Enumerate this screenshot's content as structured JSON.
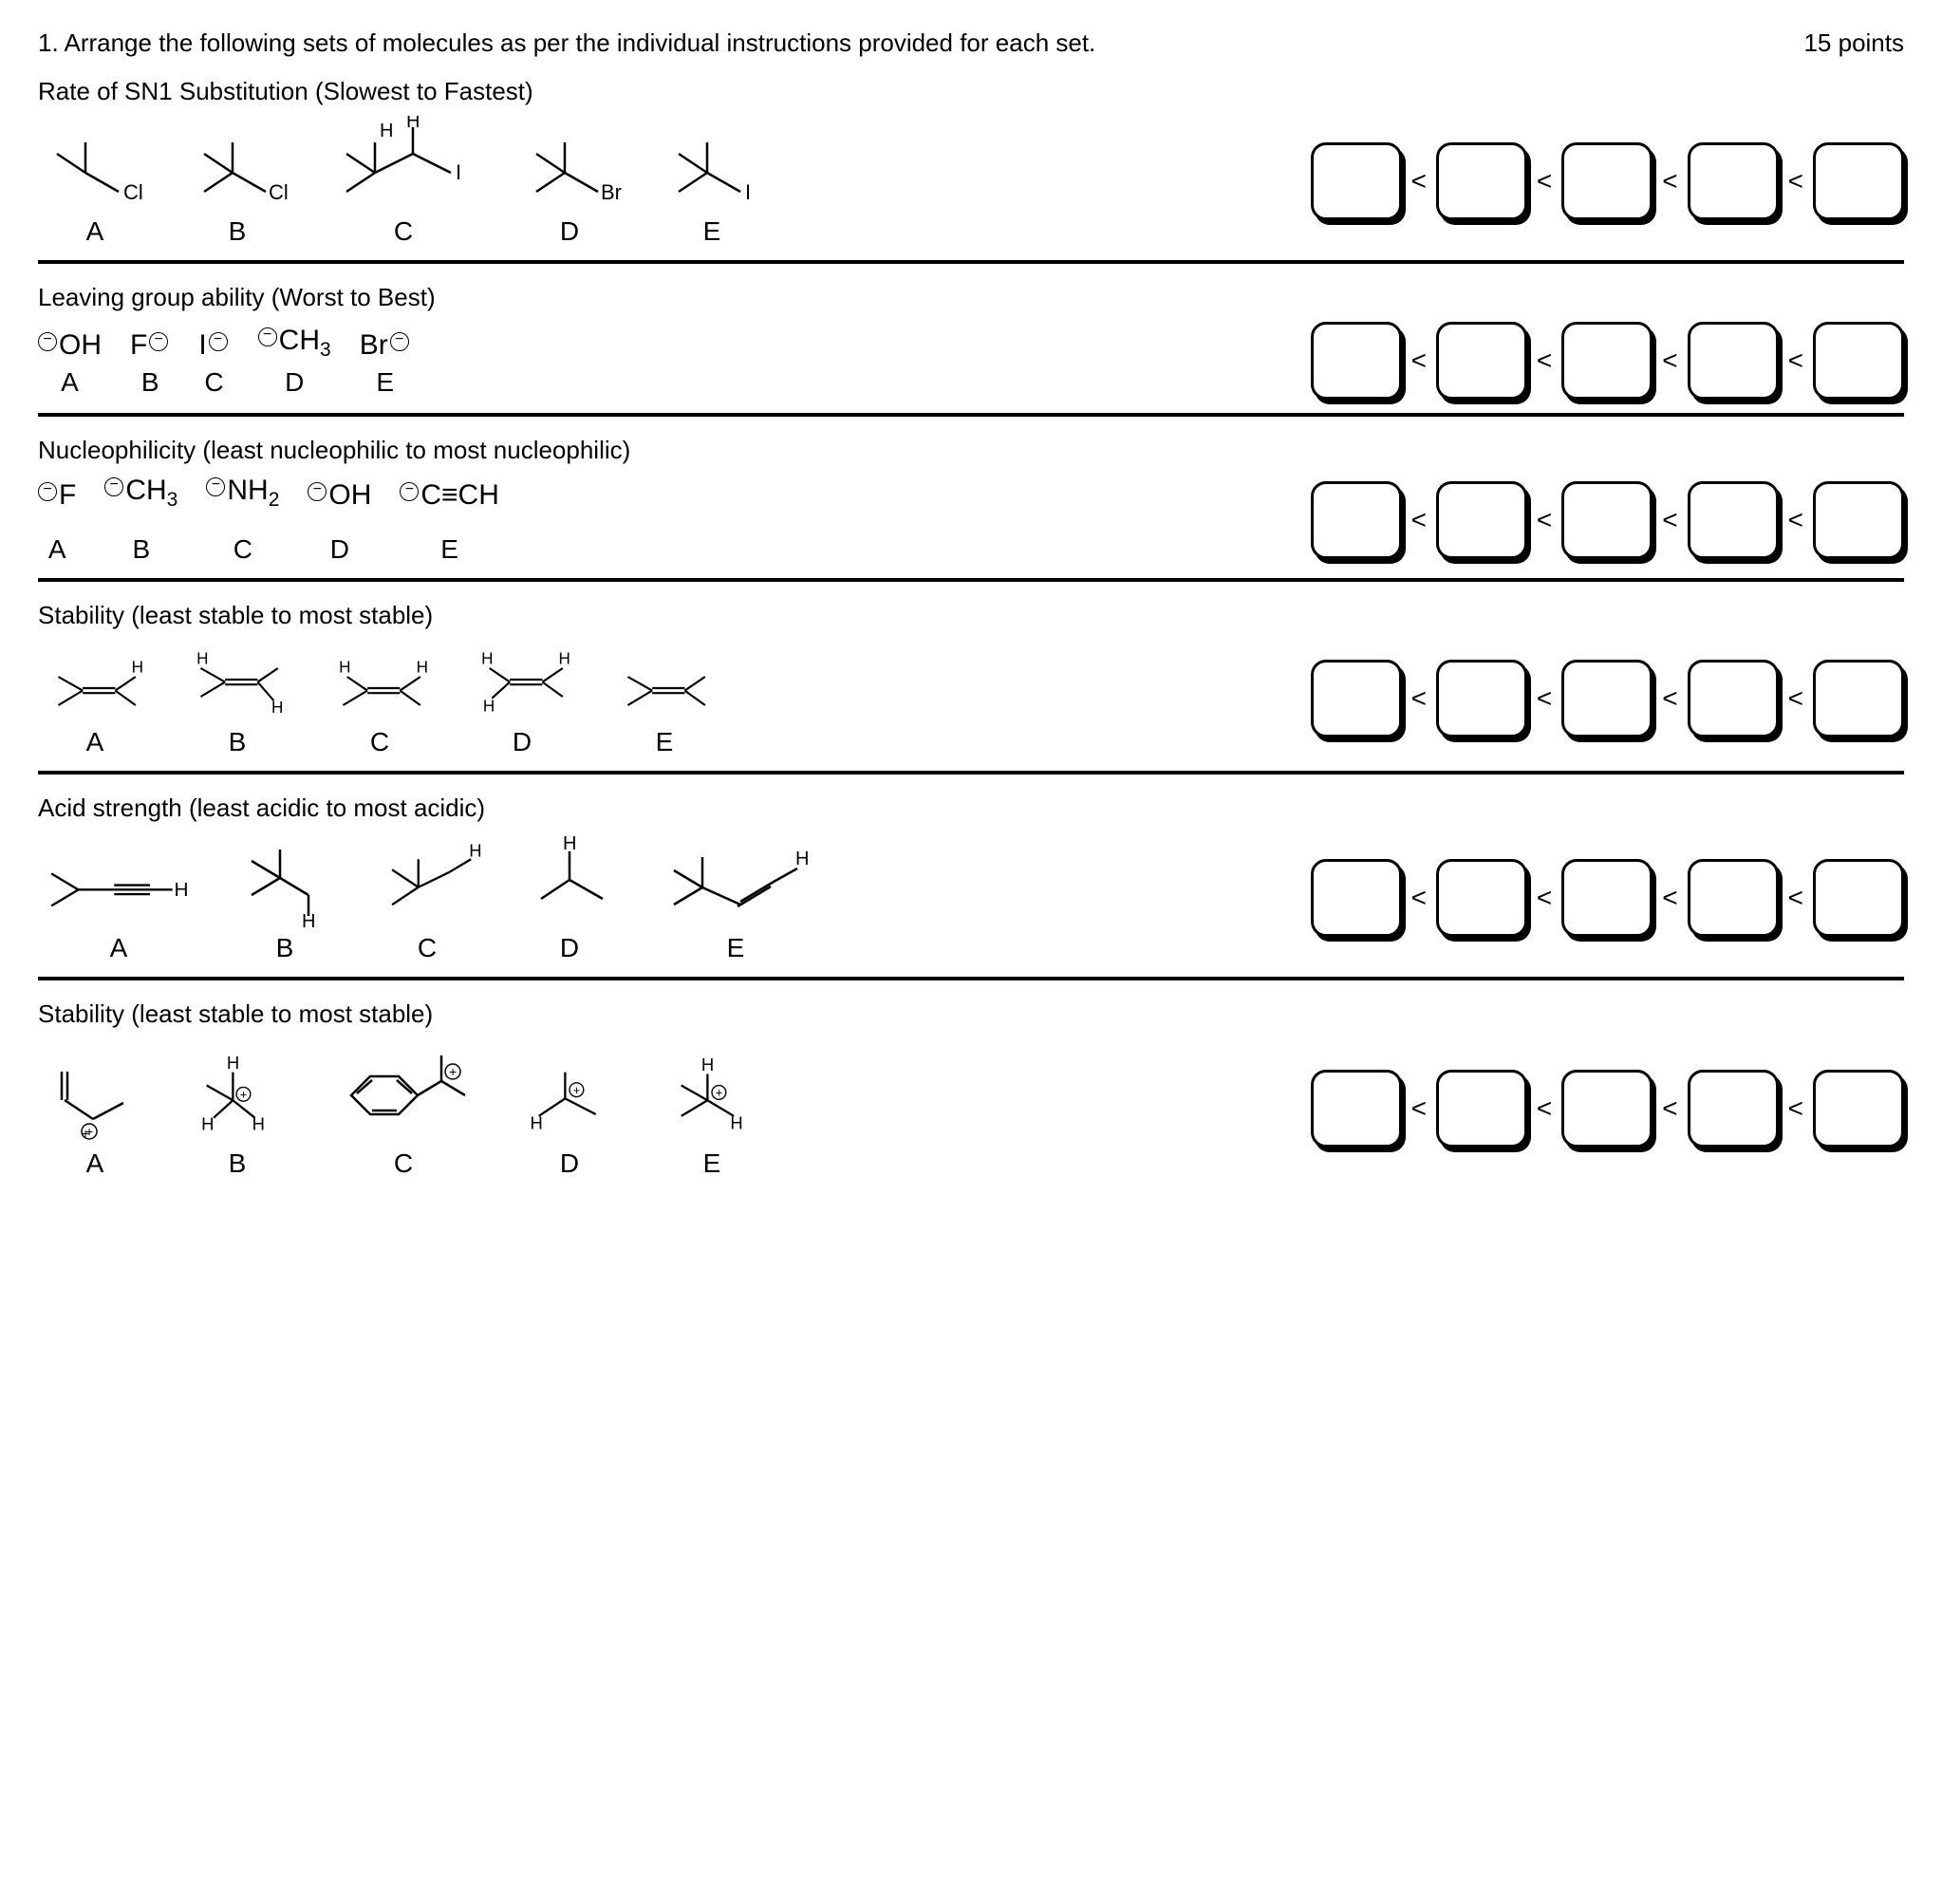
{
  "header": {
    "question": "1. Arrange the following sets of molecules as per the individual instructions provided for each set.",
    "points": "15 points"
  },
  "sections": [
    {
      "title": "Rate of SN1 Substitution (Slowest to Fastest)",
      "labels": [
        "A",
        "B",
        "C",
        "D",
        "E"
      ]
    },
    {
      "title": "Leaving group ability (Worst to Best)",
      "labels": [
        "A",
        "B",
        "C",
        "D",
        "E"
      ],
      "anions": [
        "OH",
        "F",
        "I",
        "CH<sub>3</sub>",
        "Br"
      ]
    },
    {
      "title": "Nucleophilicity (least nucleophilic to most nucleophilic)",
      "labels": [
        "A",
        "B",
        "C",
        "D",
        "E"
      ],
      "anions": [
        "F",
        "CH<sub>3</sub>",
        "NH<sub>2</sub>",
        "OH",
        "C≡CH"
      ]
    },
    {
      "title": "Stability (least stable to most stable)",
      "labels": [
        "A",
        "B",
        "C",
        "D",
        "E"
      ]
    },
    {
      "title": "Acid strength (least acidic to most acidic)",
      "labels": [
        "A",
        "B",
        "C",
        "D",
        "E"
      ]
    },
    {
      "title": "Stability (least stable to most stable)",
      "labels": [
        "A",
        "B",
        "C",
        "D",
        "E"
      ]
    }
  ],
  "lt": "<",
  "svg": {
    "stroke": "#000000",
    "stroke_width": 2.5
  }
}
